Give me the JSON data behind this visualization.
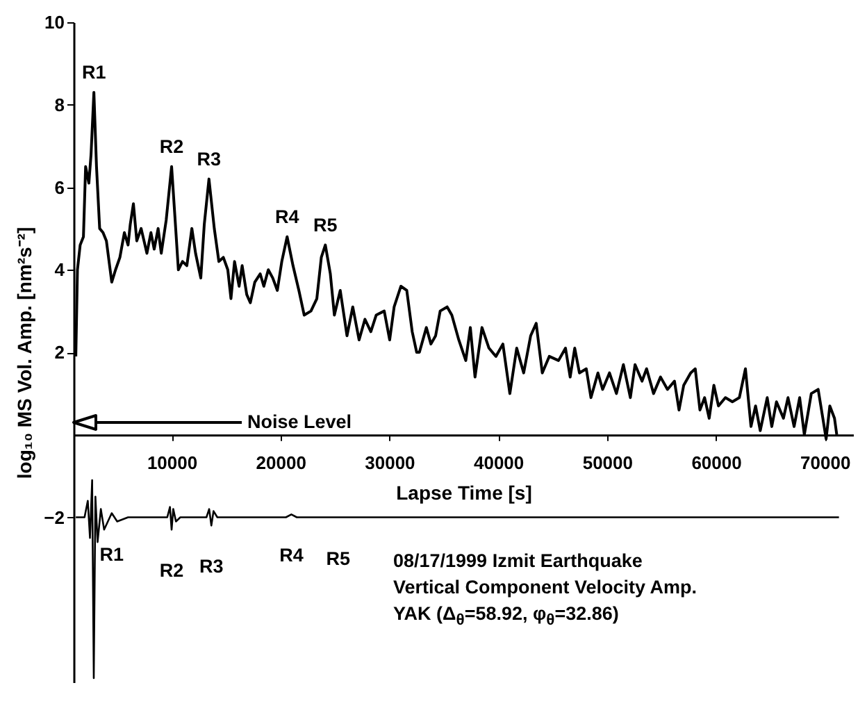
{
  "chart_data": {
    "type": "line",
    "xlabel": "Lapse Time [s]",
    "ylabel": "log₁₀ MS Vol. Amp. [nm²s⁻²]",
    "xlim": [
      1000,
      72600
    ],
    "ylim": [
      -6,
      10
    ],
    "xticks": [
      10000,
      20000,
      30000,
      40000,
      50000,
      60000,
      70000
    ],
    "yticks": [
      -2,
      2,
      4,
      6,
      8,
      10
    ],
    "grid": false,
    "line_style": "solid",
    "series": [
      {
        "color": "#000000",
        "x": [
          1200,
          1350,
          1600,
          1900,
          2100,
          2400,
          2600,
          2860,
          3100,
          3390,
          3700,
          4010,
          4500,
          4850,
          5250,
          5660,
          6000,
          6200,
          6490,
          6800,
          7200,
          7730,
          8100,
          8400,
          8760,
          9050,
          9500,
          10000,
          10300,
          10620,
          11000,
          11400,
          11860,
          12200,
          12680,
          13000,
          13430,
          13920,
          14340,
          14750,
          15160,
          15450,
          15780,
          16200,
          16480,
          16900,
          17230,
          17640,
          18140,
          18470,
          18880,
          19290,
          19710,
          20120,
          20610,
          21150,
          21690,
          22180,
          22800,
          23340,
          23750,
          24120,
          24580,
          24950,
          25490,
          26110,
          26640,
          27220,
          27760,
          28300,
          28790,
          29530,
          30030,
          30440,
          31060,
          31600,
          32100,
          32510,
          32760,
          33400,
          33820,
          34250,
          34670,
          35310,
          35740,
          36380,
          37020,
          37440,
          37870,
          38510,
          39150,
          39790,
          40430,
          41070,
          41700,
          42340,
          42980,
          43490,
          44050,
          44690,
          45540,
          46180,
          46610,
          47030,
          47460,
          48090,
          48520,
          49160,
          49590,
          50220,
          50860,
          51500,
          52140,
          52570,
          53210,
          53630,
          54270,
          54910,
          55550,
          56190,
          56610,
          57040,
          57680,
          58100,
          58530,
          58960,
          59380,
          59810,
          60230,
          60870,
          61510,
          62150,
          62710,
          63220,
          63640,
          64070,
          64710,
          65130,
          65560,
          66200,
          66620,
          67180,
          67690,
          68120,
          68760,
          69390,
          69820,
          70120,
          70460,
          70890,
          71100
        ],
        "values": [
          1.9,
          4.0,
          4.6,
          4.8,
          6.5,
          6.1,
          6.8,
          8.3,
          6.5,
          5.0,
          4.9,
          4.7,
          3.7,
          4.0,
          4.3,
          4.9,
          4.6,
          5.1,
          5.6,
          4.7,
          5.0,
          4.4,
          4.9,
          4.5,
          5.0,
          4.4,
          5.2,
          6.5,
          5.3,
          4.0,
          4.2,
          4.1,
          5.0,
          4.4,
          3.8,
          5.1,
          6.2,
          5.0,
          4.2,
          4.3,
          4.0,
          3.3,
          4.2,
          3.6,
          4.1,
          3.4,
          3.2,
          3.7,
          3.9,
          3.6,
          4.0,
          3.8,
          3.5,
          4.2,
          4.8,
          4.1,
          3.5,
          2.9,
          3.0,
          3.3,
          4.3,
          4.6,
          3.9,
          2.9,
          3.5,
          2.4,
          3.1,
          2.3,
          2.8,
          2.5,
          2.9,
          3.0,
          2.3,
          3.1,
          3.6,
          3.5,
          2.5,
          2.0,
          2.0,
          2.6,
          2.2,
          2.4,
          3.0,
          3.1,
          2.9,
          2.3,
          1.8,
          2.6,
          1.4,
          2.6,
          2.1,
          1.9,
          2.2,
          1.0,
          2.1,
          1.5,
          2.4,
          2.7,
          1.5,
          1.9,
          1.8,
          2.1,
          1.4,
          2.1,
          1.5,
          1.6,
          0.9,
          1.5,
          1.1,
          1.5,
          1.0,
          1.7,
          0.9,
          1.7,
          1.3,
          1.6,
          1.0,
          1.4,
          1.1,
          1.3,
          0.6,
          1.2,
          1.5,
          1.6,
          0.6,
          0.9,
          0.4,
          1.2,
          0.7,
          0.9,
          0.8,
          0.9,
          1.6,
          0.2,
          0.7,
          0.1,
          0.9,
          0.2,
          0.8,
          0.4,
          0.9,
          0.2,
          0.9,
          0.0,
          1.0,
          1.1,
          0.4,
          -0.1,
          0.7,
          0.4,
          0.0
        ]
      },
      {
        "color": "#000000",
        "x": [
          1200,
          2000,
          2300,
          2500,
          2700,
          2850,
          3000,
          3200,
          3500,
          3800,
          4500,
          5000,
          6000,
          9600,
          9850,
          10000,
          10150,
          10400,
          10800,
          13200,
          13450,
          13650,
          13850,
          14200,
          20500,
          21000,
          21500,
          71300
        ],
        "values": [
          -2.0,
          -2.0,
          -1.6,
          -2.5,
          -1.1,
          -5.9,
          -1.5,
          -2.6,
          -1.8,
          -2.3,
          -1.9,
          -2.1,
          -2.0,
          -2.0,
          -1.75,
          -2.3,
          -1.8,
          -2.1,
          -2.0,
          -2.0,
          -1.8,
          -2.2,
          -1.85,
          -2.0,
          -2.0,
          -1.93,
          -2.0,
          -2.0
        ]
      }
    ],
    "annotations": [
      "Noise Level",
      {
        "text": "R1",
        "x": 2860,
        "y": 8.3
      },
      {
        "text": "R2",
        "x": 10000,
        "y": 6.5
      },
      {
        "text": "R3",
        "x": 13430,
        "y": 6.2
      },
      {
        "text": "R4",
        "x": 20610,
        "y": 4.8
      },
      {
        "text": "R5",
        "x": 24120,
        "y": 4.6
      },
      {
        "text": "R1",
        "x": 4500,
        "y": -1.9
      },
      {
        "text": "R2",
        "x": 10000,
        "y": -2.3
      },
      {
        "text": "R3",
        "x": 13650,
        "y": -2.2
      },
      {
        "text": "R4",
        "x": 21000,
        "y": -1.93
      },
      {
        "text": "R5",
        "x": 25300,
        "y": -2.0
      },
      "08/17/1999 Izmit Earthquake",
      "Vertical Component Velocity Amp.",
      "YAK (Δ$_{θ}$=58.92, φ$_{θ}$=32.86)"
    ]
  }
}
